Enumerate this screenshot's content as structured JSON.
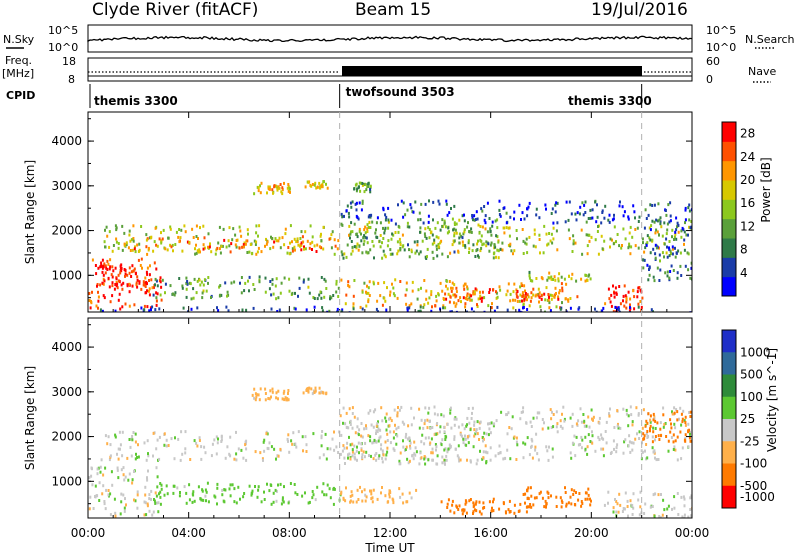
{
  "header": {
    "station": "Clyde River (fitACF)",
    "beam": "Beam 15",
    "date": "19/Jul/2016"
  },
  "strips": {
    "nsky_label": "N.Sky",
    "nsky_top_tick": "10^5",
    "nsky_bottom_tick": "10^0",
    "nsearch_label": "N.Search",
    "nsearch_top_tick": "10^5",
    "nsearch_bottom_tick": "10^0",
    "freq_label": "Freq.",
    "freq_unit": "[MHz]",
    "freq_ticks": [
      "18",
      "8"
    ],
    "nave_label": "Nave",
    "nave_ticks": [
      "60",
      "0"
    ],
    "cpid_label": "CPID",
    "cpid_segments": [
      {
        "name": "themis 3300",
        "start_hour": 0,
        "end_hour": 10
      },
      {
        "name": "twofsound 3503",
        "start_hour": 10,
        "end_hour": 22
      },
      {
        "name": "themis 3300",
        "start_hour": 22,
        "end_hour": 24
      }
    ]
  },
  "chart_data": [
    {
      "type": "heatmap",
      "panel": "power",
      "ylabel": "Slant Range [km]",
      "x_range_hours": [
        0,
        24
      ],
      "ylim": [
        180,
        4650
      ],
      "y_ticks": [
        1000,
        2000,
        3000,
        4000
      ],
      "colorbar_label": "Power [dB]",
      "colorbar_ticks": [
        4,
        8,
        12,
        16,
        20,
        24,
        28
      ],
      "colorbar_range": [
        0,
        30
      ],
      "colors": [
        "#0000ff",
        "#1a3ca8",
        "#2f7a48",
        "#5aa03a",
        "#8cc81e",
        "#d7c800",
        "#ff9600",
        "#ff5000",
        "#ff0000"
      ],
      "regions": [
        {
          "t0": 0.0,
          "t1": 2.9,
          "r0": 250,
          "r1": 1400,
          "v": 26
        },
        {
          "t0": 0.3,
          "t1": 2.6,
          "r0": 700,
          "r1": 1250,
          "v": 29
        },
        {
          "t0": 0.5,
          "t1": 24.0,
          "r0": 1500,
          "r1": 2150,
          "v": 16
        },
        {
          "t0": 1.5,
          "t1": 10.0,
          "r0": 1550,
          "r1": 1900,
          "v": 22
        },
        {
          "t0": 10.0,
          "t1": 16.5,
          "r0": 1400,
          "r1": 2300,
          "v": 12
        },
        {
          "t0": 6.5,
          "t1": 8.0,
          "r0": 2850,
          "r1": 3100,
          "v": 20
        },
        {
          "t0": 8.5,
          "t1": 9.5,
          "r0": 2980,
          "r1": 3130,
          "v": 18
        },
        {
          "t0": 10.5,
          "t1": 11.2,
          "r0": 2900,
          "r1": 3100,
          "v": 12
        },
        {
          "t0": 10.0,
          "t1": 24.0,
          "r0": 2200,
          "r1": 2700,
          "v": 5
        },
        {
          "t0": 2.5,
          "t1": 10.0,
          "r0": 500,
          "r1": 1000,
          "v": 11
        },
        {
          "t0": 10.0,
          "t1": 19.0,
          "r0": 300,
          "r1": 950,
          "v": 19
        },
        {
          "t0": 14.0,
          "t1": 18.0,
          "r0": 450,
          "r1": 750,
          "v": 25
        },
        {
          "t0": 17.0,
          "t1": 19.5,
          "r0": 450,
          "r1": 650,
          "v": 22
        },
        {
          "t0": 17.5,
          "t1": 20.0,
          "r0": 900,
          "r1": 1100,
          "v": 15
        },
        {
          "t0": 20.5,
          "t1": 22.0,
          "r0": 200,
          "r1": 800,
          "v": 27
        },
        {
          "t0": 22.0,
          "t1": 24.0,
          "r0": 900,
          "r1": 2300,
          "v": 8
        },
        {
          "t0": 0.0,
          "t1": 24.0,
          "r0": 180,
          "r1": 330,
          "v": 5
        }
      ]
    },
    {
      "type": "heatmap",
      "panel": "velocity",
      "ylabel": "Slant Range [km]",
      "xlabel": "Time UT",
      "x_range_hours": [
        0,
        24
      ],
      "x_ticks": [
        "00:00",
        "04:00",
        "08:00",
        "12:00",
        "16:00",
        "20:00",
        "00:00"
      ],
      "ylim": [
        180,
        4650
      ],
      "y_ticks": [
        1000,
        2000,
        3000,
        4000
      ],
      "colorbar_label": "Velocity [m s^-1]",
      "colorbar_ticks": [
        1000,
        500,
        100,
        25,
        -25,
        -100,
        -500,
        -1000
      ],
      "colors": [
        "#1f2fc8",
        "#2f6a9a",
        "#2e8b3a",
        "#5cc832",
        "#c8c8c8",
        "#ffb04a",
        "#ff7a00",
        "#ff0000"
      ],
      "regions": [
        {
          "t0": 0.5,
          "t1": 24.0,
          "r0": 1500,
          "r1": 2150,
          "v": 0
        },
        {
          "t0": 10.0,
          "t1": 16.0,
          "r0": 1400,
          "r1": 2400,
          "v": 0
        },
        {
          "t0": 0.0,
          "t1": 2.8,
          "r0": 250,
          "r1": 1350,
          "v": 0
        },
        {
          "t0": 2.5,
          "t1": 10.0,
          "r0": 500,
          "r1": 1000,
          "v": 60
        },
        {
          "t0": 10.0,
          "t1": 13.0,
          "r0": 550,
          "r1": 900,
          "v": -60
        },
        {
          "t0": 13.5,
          "t1": 17.5,
          "r0": 300,
          "r1": 650,
          "v": -400
        },
        {
          "t0": 17.0,
          "t1": 20.0,
          "r0": 450,
          "r1": 900,
          "v": -300
        },
        {
          "t0": 20.5,
          "t1": 24.0,
          "r0": 200,
          "r1": 800,
          "v": 0
        },
        {
          "t0": 6.5,
          "t1": 8.0,
          "r0": 2850,
          "r1": 3100,
          "v": -60
        },
        {
          "t0": 8.5,
          "t1": 9.5,
          "r0": 2980,
          "r1": 3130,
          "v": -60
        },
        {
          "t0": 10.0,
          "t1": 24.0,
          "r0": 2200,
          "r1": 2700,
          "v": 0
        },
        {
          "t0": 22.0,
          "t1": 24.0,
          "r0": 1900,
          "r1": 2600,
          "v": -300
        }
      ]
    }
  ]
}
